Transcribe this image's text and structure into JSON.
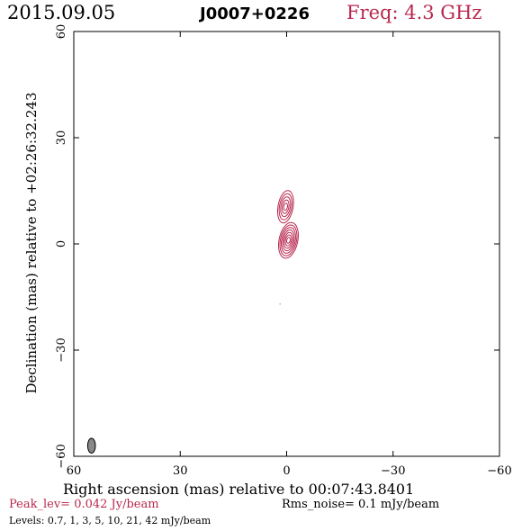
{
  "header": {
    "date": "2015.09.05",
    "source": "J0007+0226",
    "freq": "Freq: 4.3 GHz"
  },
  "chart_data": {
    "type": "contour",
    "xlabel": "Right ascension (mas) relative to 00:07:43.8401",
    "ylabel": "Declination (mas) relative to +02:26:32.243",
    "xlim": [
      60,
      -60
    ],
    "ylim": [
      -60,
      60
    ],
    "xticks": [
      60,
      30,
      0,
      -30,
      -60
    ],
    "yticks": [
      60,
      30,
      0,
      -30,
      -60
    ],
    "xtick_labels": [
      "60",
      "30",
      "0",
      "−30",
      "−60"
    ],
    "ytick_labels": [
      "60",
      "30",
      "0",
      "−30",
      "−60"
    ],
    "components": [
      {
        "x": 0.3,
        "y": 10.5,
        "peak_levels": 5,
        "major": 9,
        "minor": 4,
        "pa": 10
      },
      {
        "x": -0.5,
        "y": 1.0,
        "peak_levels": 7,
        "major": 10,
        "minor": 5,
        "pa": 12
      }
    ],
    "beam": {
      "x": 55,
      "y": -57,
      "major": 4.2,
      "minor": 2.2,
      "pa": 0
    },
    "speck": {
      "x": 2,
      "y": -17
    },
    "contour_color": "#b8284f"
  },
  "footer": {
    "peak": "Peak_lev=  0.042 Jy/beam",
    "rms": "Rms_noise=   0.1 mJy/beam",
    "levels": "Levels: 0.7,    1,    3,    5,   10,   21,   42 mJy/beam"
  }
}
